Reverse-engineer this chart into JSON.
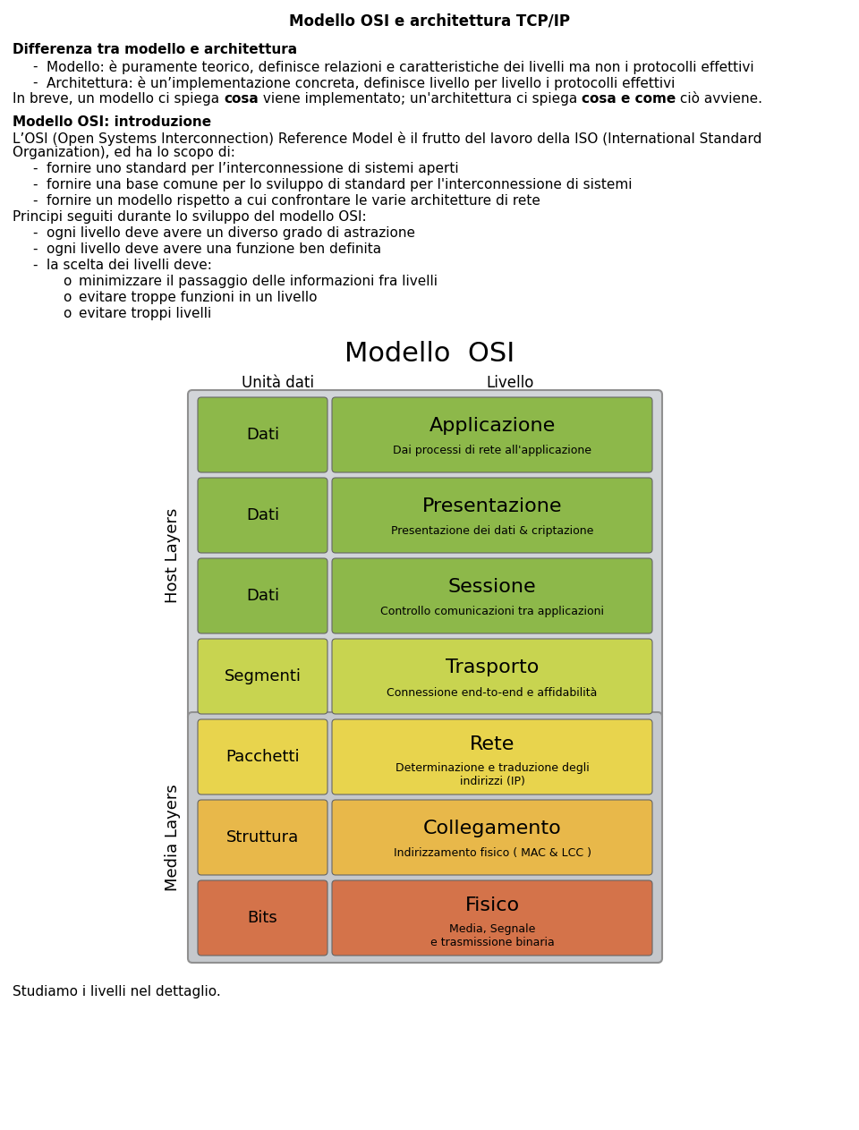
{
  "title": "Modello OSI e architettura TCP/IP",
  "page_bg": "#ffffff",
  "text_color": "#000000",
  "diagram_title": "Modello  OSI",
  "diagram_col1": "Unità dati",
  "diagram_col2": "Livello",
  "layers": [
    {
      "unit": "Dati",
      "name": "Applicazione",
      "desc": "Dai processi di rete all'applicazione",
      "group": "host",
      "unit_color": "#8db84a",
      "name_color": "#8db84a"
    },
    {
      "unit": "Dati",
      "name": "Presentazione",
      "desc": "Presentazione dei dati & criptazione",
      "group": "host",
      "unit_color": "#8db84a",
      "name_color": "#8db84a"
    },
    {
      "unit": "Dati",
      "name": "Sessione",
      "desc": "Controllo comunicazioni tra applicazioni",
      "group": "host",
      "unit_color": "#8db84a",
      "name_color": "#8db84a"
    },
    {
      "unit": "Segmenti",
      "name": "Trasporto",
      "desc": "Connessione end-to-end e affidabilità",
      "group": "host",
      "unit_color": "#c8d450",
      "name_color": "#c8d450"
    },
    {
      "unit": "Pacchetti",
      "name": "Rete",
      "desc": "Determinazione e traduzione degli\nindirizzi (IP)",
      "group": "media",
      "unit_color": "#e8d44d",
      "name_color": "#e8d44d"
    },
    {
      "unit": "Struttura",
      "name": "Collegamento",
      "desc": "Indirizzamento fisico ( MAC & LCC )",
      "group": "media",
      "unit_color": "#e8b84a",
      "name_color": "#e8b84a"
    },
    {
      "unit": "Bits",
      "name": "Fisico",
      "desc": "Media, Segnale\ne trasmissione binaria",
      "group": "media",
      "unit_color": "#d4734a",
      "name_color": "#d4734a"
    }
  ],
  "host_label": "Host Layers",
  "media_label": "Media Layers",
  "footer": "Studiamo i livelli nel dettaglio."
}
